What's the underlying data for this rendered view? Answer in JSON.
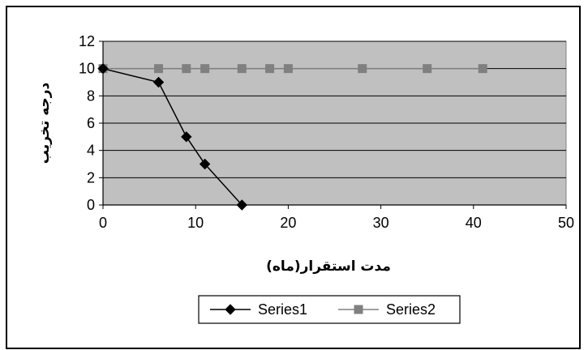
{
  "chart_data": {
    "type": "line",
    "title": "",
    "xlabel": "مدت استقرار(ماه)",
    "ylabel": "درجه تخريب",
    "xlim": [
      0,
      50
    ],
    "ylim": [
      0,
      12
    ],
    "xticks": [
      0,
      10,
      20,
      30,
      40,
      50
    ],
    "yticks": [
      0,
      2,
      4,
      6,
      8,
      10,
      12
    ],
    "grid": "horizontal",
    "plot_background": "#c0c0c0",
    "legend_position": "bottom",
    "series": [
      {
        "name": "Series1",
        "marker": "diamond",
        "color": "#000000",
        "points": [
          [
            0,
            10
          ],
          [
            6,
            9
          ],
          [
            9,
            5
          ],
          [
            11,
            3
          ],
          [
            15,
            0
          ]
        ]
      },
      {
        "name": "Series2",
        "marker": "square",
        "color": "#808080",
        "points": [
          [
            0,
            10
          ],
          [
            6,
            10
          ],
          [
            9,
            10
          ],
          [
            11,
            10
          ],
          [
            15,
            10
          ],
          [
            18,
            10
          ],
          [
            20,
            10
          ],
          [
            28,
            10
          ],
          [
            35,
            10
          ],
          [
            41,
            10
          ]
        ]
      }
    ]
  }
}
